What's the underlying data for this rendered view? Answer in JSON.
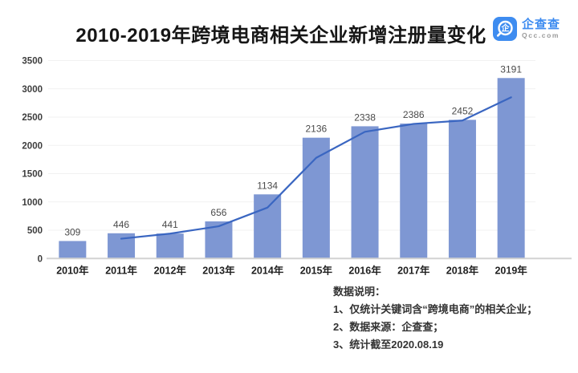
{
  "header": {
    "title": "2010-2019年跨境电商相关企业新增注册量变化",
    "logo": {
      "icon": "qcc-magnifier-icon",
      "glyph_char": "企",
      "name": "企查查",
      "domain": "Qcc.com",
      "brand_color": "#3e8cf0"
    }
  },
  "chart_data": {
    "type": "bar",
    "title": "2010-2019年跨境电商相关企业新增注册量变化",
    "categories": [
      "2010年",
      "2011年",
      "2012年",
      "2013年",
      "2014年",
      "2015年",
      "2016年",
      "2017年",
      "2018年",
      "2019年"
    ],
    "series": [
      {
        "name": "新增注册量",
        "type": "bar",
        "color": "#7e97d3",
        "values": [
          309,
          446,
          441,
          656,
          1134,
          2136,
          2338,
          2386,
          2452,
          3191
        ]
      },
      {
        "name": "趋势线",
        "type": "line",
        "color": "#3a66c1",
        "values": [
          null,
          350,
          440,
          570,
          900,
          1780,
          2240,
          2380,
          2440,
          2850
        ]
      }
    ],
    "xlabel": "",
    "ylabel": "",
    "ylim": [
      0,
      3500
    ],
    "yticks": [
      0,
      500,
      1000,
      1500,
      2000,
      2500,
      3000,
      3500
    ],
    "grid": true,
    "legend": false,
    "data_labels": true,
    "colors": {
      "grid_line": "#f1f1f1",
      "axis_line": "#d2d2d2",
      "y_tick_text": "#3d3d3d",
      "x_tick_text": "#1f1f1f",
      "value_label_text": "#4a4a4a"
    }
  },
  "notes": {
    "heading": "数据说明：",
    "items": [
      "1、仅统计关键词含“跨境电商”的相关企业；",
      "2、数据来源：企查查；",
      "3、统计截至2020.08.19"
    ]
  }
}
